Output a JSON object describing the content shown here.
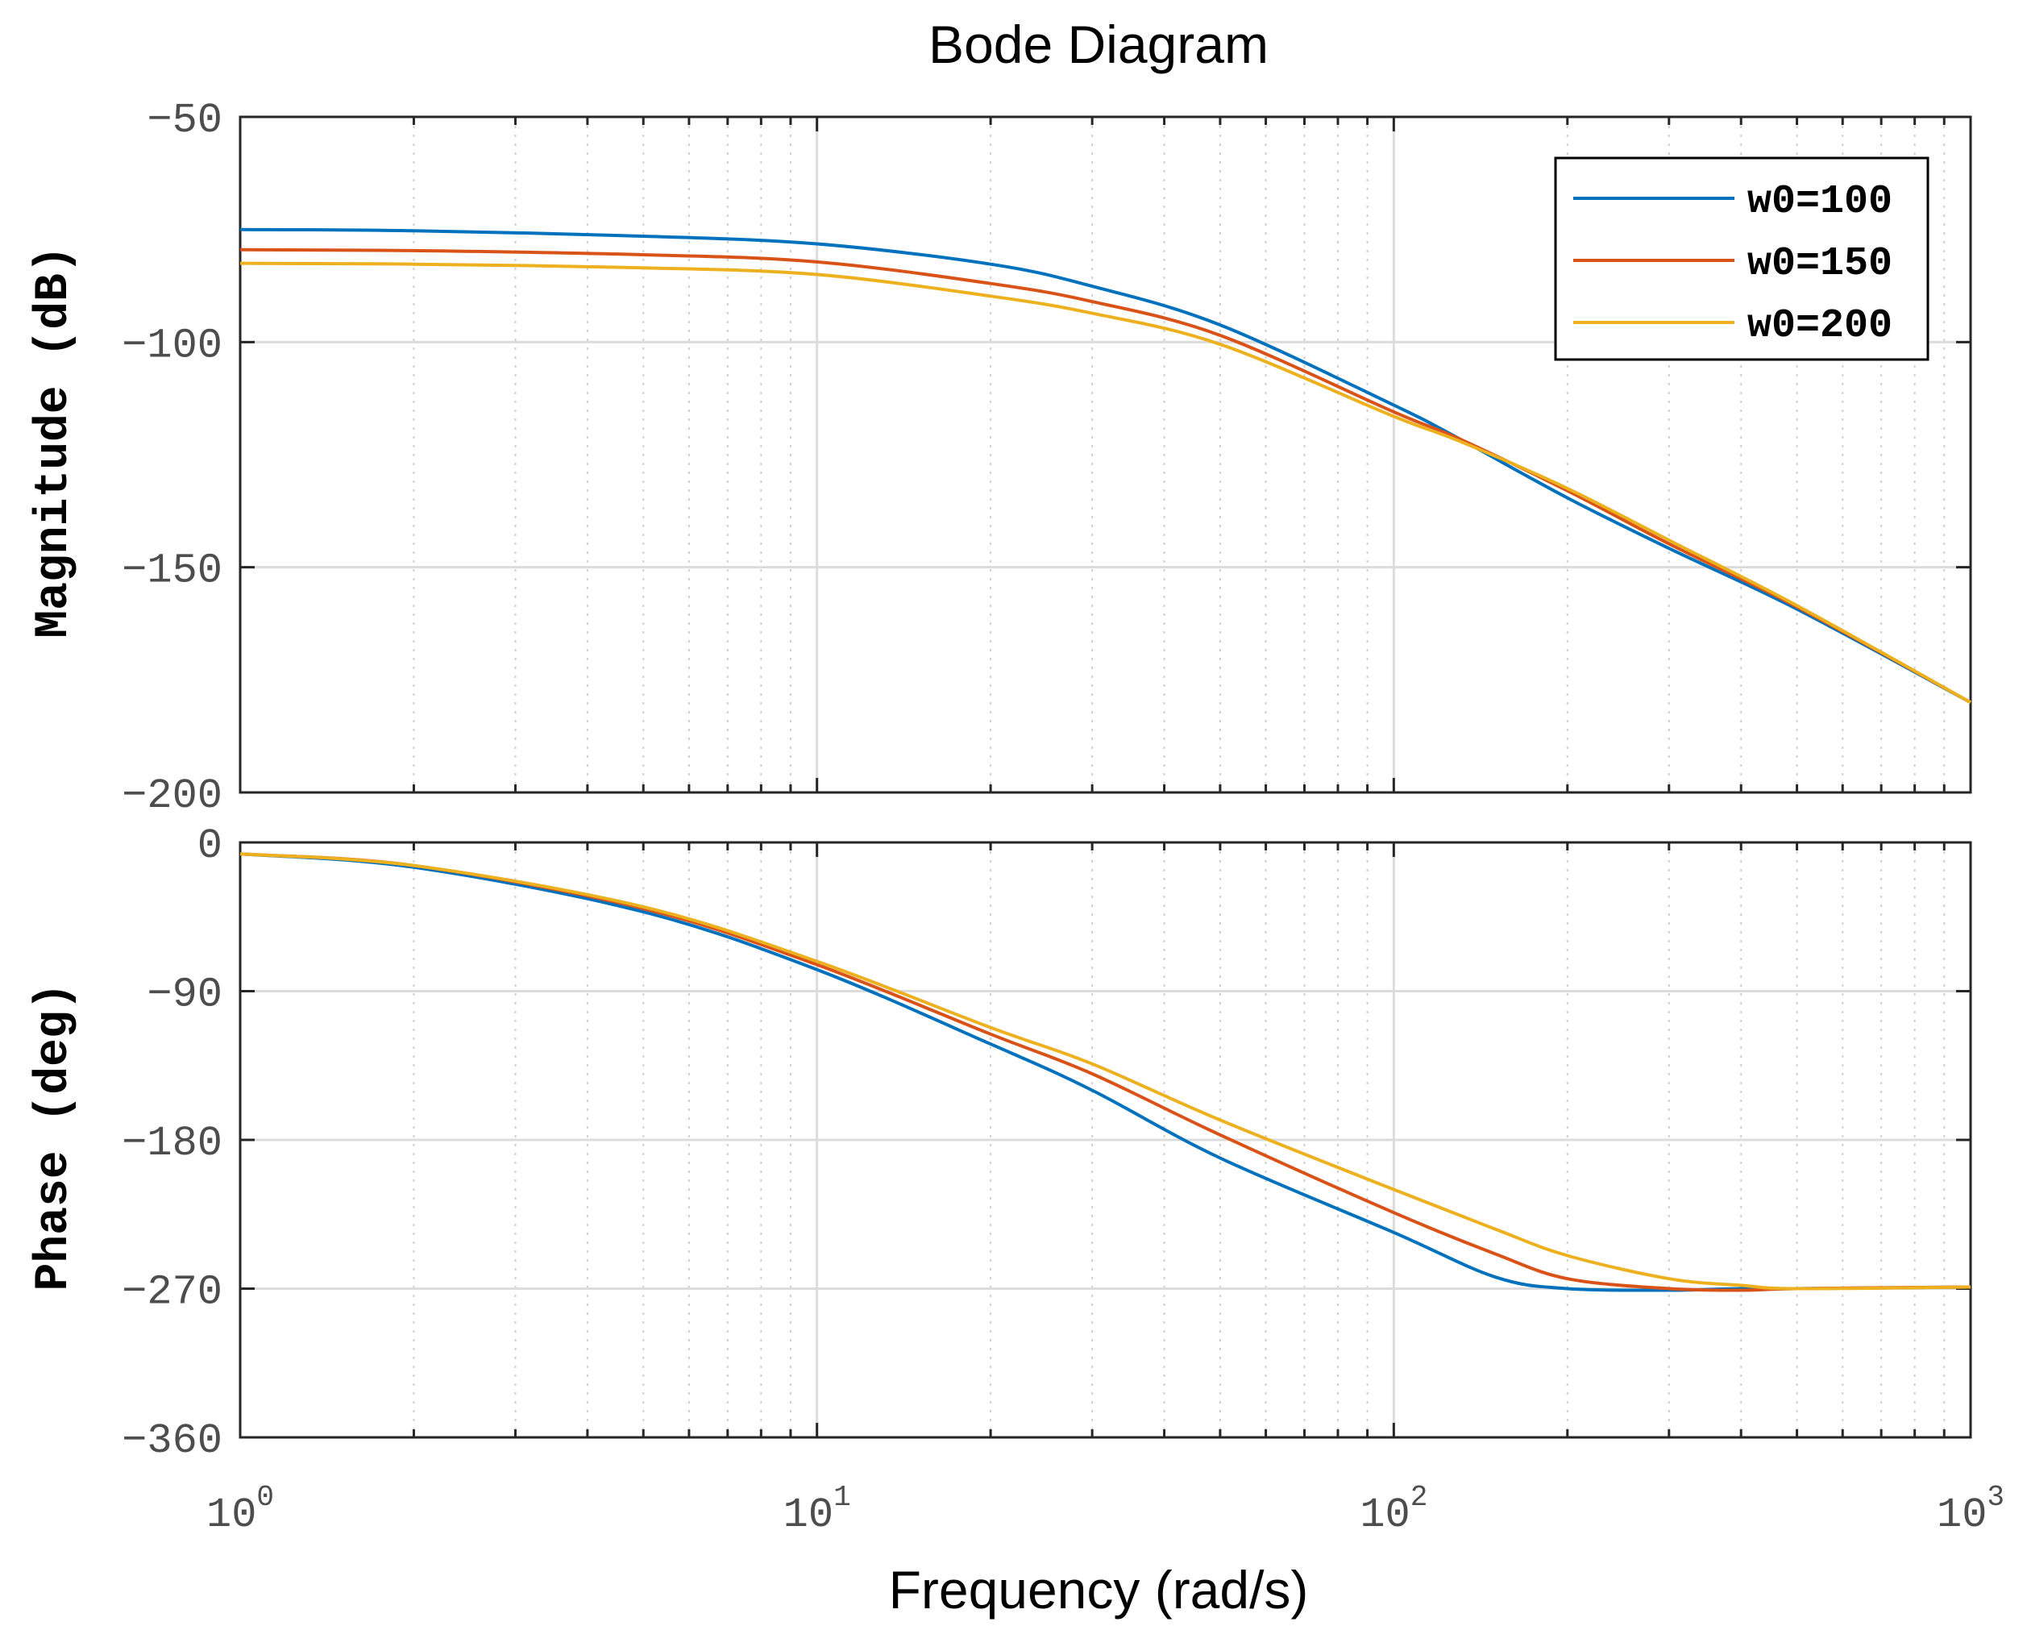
{
  "chart_data": [
    {
      "type": "line",
      "title": "Bode Diagram",
      "xlabel": "Frequency  (rad/s)",
      "ylabel": "Magnitude  (dB)",
      "xscale": "log",
      "xlim": [
        1,
        1000
      ],
      "ylim": [
        -200,
        -50
      ],
      "yticks": [
        -50,
        -100,
        -150,
        -200
      ],
      "xticks": [
        {
          "base": "10",
          "exp": "0"
        },
        {
          "base": "10",
          "exp": "1"
        },
        {
          "base": "10",
          "exp": "2"
        },
        {
          "base": "10",
          "exp": "3"
        }
      ],
      "grid": true,
      "legend_position": "top-right",
      "x": [
        1,
        2,
        5,
        10,
        20,
        30,
        50,
        100,
        130,
        200,
        300,
        500,
        1000
      ],
      "series": [
        {
          "name": "w0=100",
          "color": "#0072BD",
          "values": [
            -75.0,
            -75.3,
            -76.5,
            -78.2,
            -82.7,
            -87.6,
            -96.2,
            -114.0,
            -121.5,
            -134.6,
            -145.8,
            -159.3,
            -180.0
          ]
        },
        {
          "name": "w0=150",
          "color": "#D95319",
          "values": [
            -79.5,
            -79.7,
            -80.6,
            -82.2,
            -87.0,
            -91.0,
            -98.5,
            -115.5,
            -121.5,
            -133.0,
            -144.8,
            -158.8,
            -180.0
          ]
        },
        {
          "name": "w0=200",
          "color": "#EDB120",
          "values": [
            -82.5,
            -82.7,
            -83.5,
            -85.0,
            -89.8,
            -93.6,
            -100.5,
            -116.5,
            -122.0,
            -132.5,
            -144.0,
            -158.5,
            -180.0
          ]
        }
      ]
    },
    {
      "type": "line",
      "xlabel": "Frequency  (rad/s)",
      "ylabel": "Phase  (deg)",
      "xscale": "log",
      "xlim": [
        1,
        1000
      ],
      "ylim": [
        -360,
        0
      ],
      "yticks": [
        0,
        -90,
        -180,
        -270,
        -360
      ],
      "grid": true,
      "x": [
        1,
        2,
        5,
        10,
        20,
        30,
        50,
        100,
        150,
        200,
        300,
        400,
        500,
        1000
      ],
      "series": [
        {
          "name": "w0=100",
          "color": "#0072BD",
          "values": [
            -7,
            -15,
            -42,
            -77,
            -122,
            -150,
            -191,
            -236,
            -263,
            -270,
            -271,
            -270,
            -270,
            -269
          ]
        },
        {
          "name": "w0=150",
          "color": "#D95319",
          "values": [
            -7,
            -14,
            -40,
            -74,
            -116,
            -140,
            -177,
            -224,
            -249,
            -264,
            -270,
            -271,
            -270,
            -269
          ]
        },
        {
          "name": "w0=200",
          "color": "#EDB120",
          "values": [
            -7,
            -14,
            -39,
            -72,
            -112,
            -134,
            -168,
            -210,
            -234,
            -250,
            -264,
            -268,
            -270,
            -269
          ]
        }
      ]
    }
  ]
}
